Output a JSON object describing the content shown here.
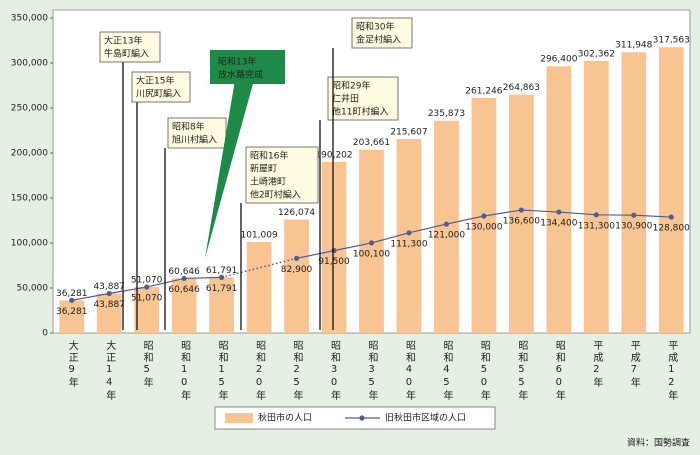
{
  "chart_data": {
    "type": "bar",
    "source": "資料：国勢調査",
    "categories": [
      "大正9年",
      "大正14年",
      "昭和5年",
      "昭和10年",
      "昭和15年",
      "昭和20年",
      "昭和25年",
      "昭和30年",
      "昭和35年",
      "昭和40年",
      "昭和45年",
      "昭和50年",
      "昭和55年",
      "昭和60年",
      "平成2年",
      "平成7年",
      "平成12年"
    ],
    "series": [
      {
        "name": "秋田市の人口",
        "color": "#f8c491",
        "values": [
          36281,
          43887,
          51070,
          60646,
          61791,
          101009,
          126074,
          190202,
          203661,
          215607,
          235873,
          261246,
          264863,
          296400,
          302362,
          311948,
          317563
        ],
        "value_labels": [
          "36,281",
          "43,887",
          "51,070",
          "60,646",
          "61,791",
          "101,009",
          "126,074",
          "190,202",
          "203,661",
          "215,607",
          "235,873",
          "261,246",
          "264,863",
          "296,400",
          "302,362",
          "311,948",
          "317,563"
        ]
      },
      {
        "name": "旧秋田市区域の人口",
        "type": "line",
        "color": "#4f5f96",
        "values": [
          36281,
          43887,
          51070,
          60646,
          61791,
          null,
          82900,
          91500,
          100100,
          111300,
          121000,
          130000,
          136600,
          134400,
          131300,
          130900,
          128800
        ],
        "value_labels": [
          "36,281",
          "43,887",
          "51,070",
          "60,646",
          "61,791",
          null,
          "82,900",
          "91,500",
          "100,100",
          "111,300",
          "121,000",
          "130,000",
          "136,600",
          "134,400",
          "131,300",
          "130,900",
          "128,800"
        ]
      }
    ],
    "ylim": [
      0,
      350000
    ],
    "yticks": [
      0,
      {
        "value": 50000,
        "label": "50,000"
      },
      {
        "value": 100000,
        "label": "100,000"
      },
      {
        "value": 150000,
        "label": "150,000"
      },
      {
        "value": 200000,
        "label": "200,000"
      },
      {
        "value": 250000,
        "label": "250,000"
      },
      {
        "value": 300000,
        "label": "300,000"
      },
      {
        "value": 350000,
        "label": "350,000"
      }
    ],
    "annotations": [
      {
        "lines": [
          "大正13年",
          "牛島町編入"
        ]
      },
      {
        "lines": [
          "大正15年",
          "川尻町編入"
        ]
      },
      {
        "lines": [
          "昭和8年",
          "旭川村編入"
        ]
      },
      {
        "lines": [
          "昭和13年",
          "放水路完成"
        ]
      },
      {
        "lines": [
          "昭和16年",
          "新屋町",
          "土崎港町",
          "他2町村編入"
        ]
      },
      {
        "lines": [
          "昭和29年",
          "仁井田",
          "他11町村編入"
        ]
      },
      {
        "lines": [
          "昭和30年",
          "金足村編入"
        ]
      }
    ]
  }
}
